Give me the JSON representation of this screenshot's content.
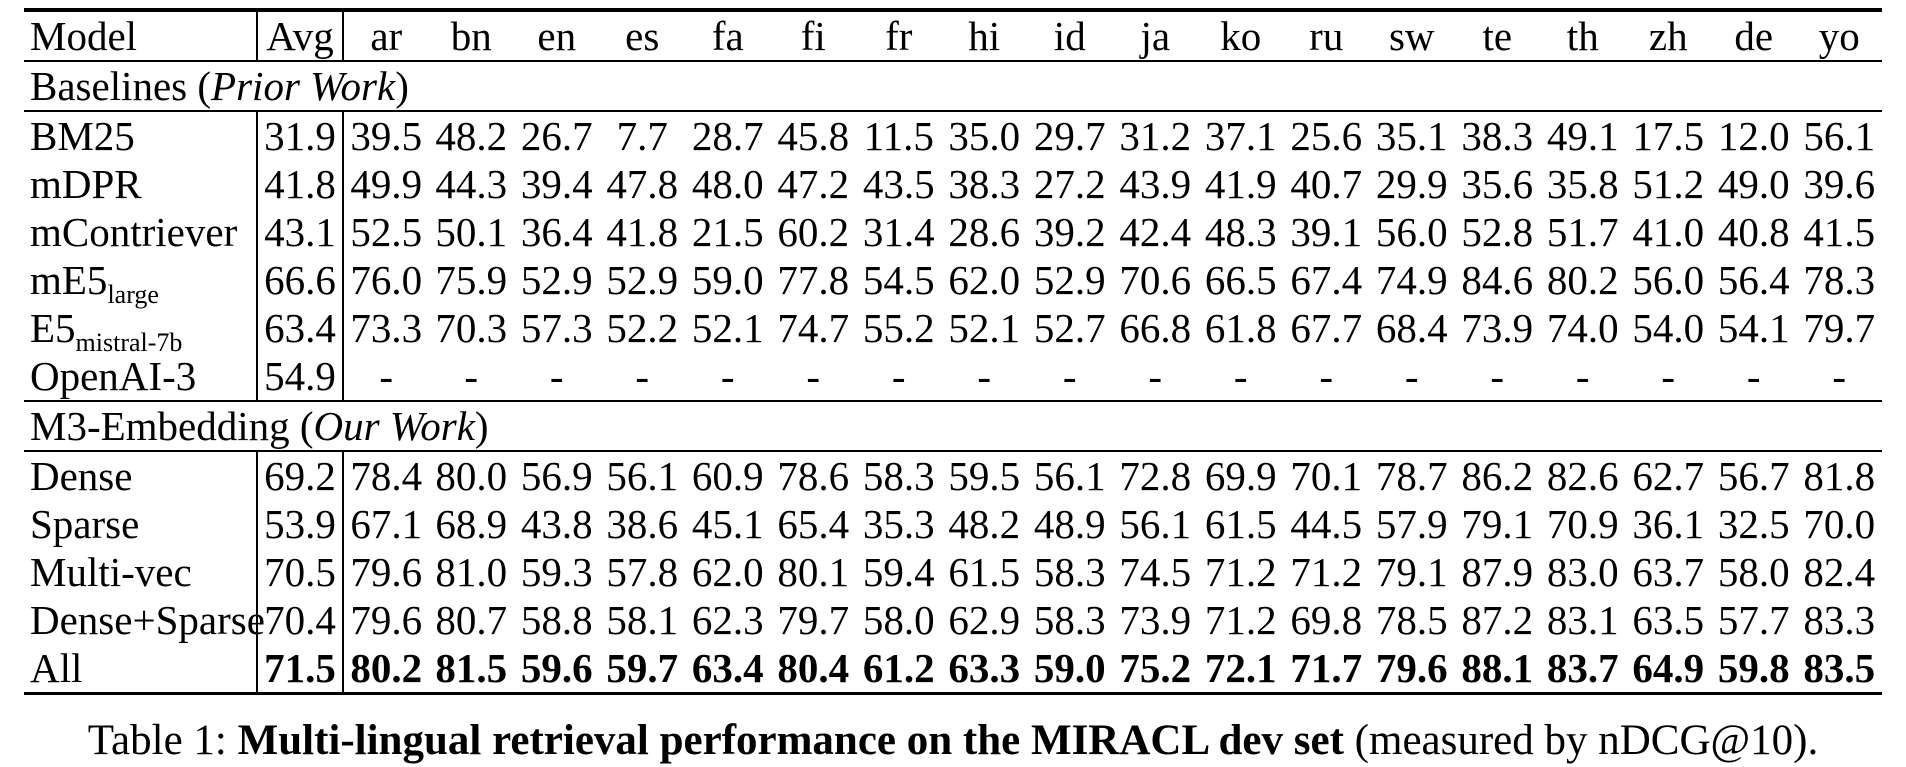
{
  "colors": {
    "text": "#000000",
    "background": "#ffffff",
    "rule": "#000000"
  },
  "table": {
    "columns": [
      "Model",
      "Avg",
      "ar",
      "bn",
      "en",
      "es",
      "fa",
      "fi",
      "fr",
      "hi",
      "id",
      "ja",
      "ko",
      "ru",
      "sw",
      "te",
      "th",
      "zh",
      "de",
      "yo"
    ],
    "sections": [
      {
        "title_plain": "Baselines (",
        "title_italic": "Prior Work",
        "title_close": ")",
        "rows": [
          {
            "model": "BM25",
            "model_sub": "",
            "bold": false,
            "values": [
              "31.9",
              "39.5",
              "48.2",
              "26.7",
              "7.7",
              "28.7",
              "45.8",
              "11.5",
              "35.0",
              "29.7",
              "31.2",
              "37.1",
              "25.6",
              "35.1",
              "38.3",
              "49.1",
              "17.5",
              "12.0",
              "56.1"
            ]
          },
          {
            "model": "mDPR",
            "model_sub": "",
            "bold": false,
            "values": [
              "41.8",
              "49.9",
              "44.3",
              "39.4",
              "47.8",
              "48.0",
              "47.2",
              "43.5",
              "38.3",
              "27.2",
              "43.9",
              "41.9",
              "40.7",
              "29.9",
              "35.6",
              "35.8",
              "51.2",
              "49.0",
              "39.6"
            ]
          },
          {
            "model": "mContriever",
            "model_sub": "",
            "bold": false,
            "values": [
              "43.1",
              "52.5",
              "50.1",
              "36.4",
              "41.8",
              "21.5",
              "60.2",
              "31.4",
              "28.6",
              "39.2",
              "42.4",
              "48.3",
              "39.1",
              "56.0",
              "52.8",
              "51.7",
              "41.0",
              "40.8",
              "41.5"
            ]
          },
          {
            "model": "mE5",
            "model_sub": "large",
            "bold": false,
            "values": [
              "66.6",
              "76.0",
              "75.9",
              "52.9",
              "52.9",
              "59.0",
              "77.8",
              "54.5",
              "62.0",
              "52.9",
              "70.6",
              "66.5",
              "67.4",
              "74.9",
              "84.6",
              "80.2",
              "56.0",
              "56.4",
              "78.3"
            ]
          },
          {
            "model": "E5",
            "model_sub": "mistral-7b",
            "bold": false,
            "values": [
              "63.4",
              "73.3",
              "70.3",
              "57.3",
              "52.2",
              "52.1",
              "74.7",
              "55.2",
              "52.1",
              "52.7",
              "66.8",
              "61.8",
              "67.7",
              "68.4",
              "73.9",
              "74.0",
              "54.0",
              "54.1",
              "79.7"
            ]
          },
          {
            "model": "OpenAI-3",
            "model_sub": "",
            "bold": false,
            "values": [
              "54.9",
              "-",
              "-",
              "-",
              "-",
              "-",
              "-",
              "-",
              "-",
              "-",
              "-",
              "-",
              "-",
              "-",
              "-",
              "-",
              "-",
              "-",
              "-"
            ]
          }
        ]
      },
      {
        "title_plain": "M3-Embedding (",
        "title_italic": "Our Work",
        "title_close": ")",
        "rows": [
          {
            "model": "Dense",
            "model_sub": "",
            "bold": false,
            "values": [
              "69.2",
              "78.4",
              "80.0",
              "56.9",
              "56.1",
              "60.9",
              "78.6",
              "58.3",
              "59.5",
              "56.1",
              "72.8",
              "69.9",
              "70.1",
              "78.7",
              "86.2",
              "82.6",
              "62.7",
              "56.7",
              "81.8"
            ]
          },
          {
            "model": "Sparse",
            "model_sub": "",
            "bold": false,
            "values": [
              "53.9",
              "67.1",
              "68.9",
              "43.8",
              "38.6",
              "45.1",
              "65.4",
              "35.3",
              "48.2",
              "48.9",
              "56.1",
              "61.5",
              "44.5",
              "57.9",
              "79.1",
              "70.9",
              "36.1",
              "32.5",
              "70.0"
            ]
          },
          {
            "model": "Multi-vec",
            "model_sub": "",
            "bold": false,
            "values": [
              "70.5",
              "79.6",
              "81.0",
              "59.3",
              "57.8",
              "62.0",
              "80.1",
              "59.4",
              "61.5",
              "58.3",
              "74.5",
              "71.2",
              "71.2",
              "79.1",
              "87.9",
              "83.0",
              "63.7",
              "58.0",
              "82.4"
            ]
          },
          {
            "model": "Dense+Sparse",
            "model_sub": "",
            "bold": false,
            "values": [
              "70.4",
              "79.6",
              "80.7",
              "58.8",
              "58.1",
              "62.3",
              "79.7",
              "58.0",
              "62.9",
              "58.3",
              "73.9",
              "71.2",
              "69.8",
              "78.5",
              "87.2",
              "83.1",
              "63.5",
              "57.7",
              "83.3"
            ]
          },
          {
            "model": "All",
            "model_sub": "",
            "bold": true,
            "values": [
              "71.5",
              "80.2",
              "81.5",
              "59.6",
              "59.7",
              "63.4",
              "80.4",
              "61.2",
              "63.3",
              "59.0",
              "75.2",
              "72.1",
              "71.7",
              "79.6",
              "88.1",
              "83.7",
              "64.9",
              "59.8",
              "83.5"
            ]
          }
        ]
      }
    ]
  },
  "caption": {
    "prefix": "Table 1: ",
    "bold": "Multi-lingual retrieval performance on the MIRACL dev set",
    "suffix": " (measured by nDCG@10)."
  }
}
